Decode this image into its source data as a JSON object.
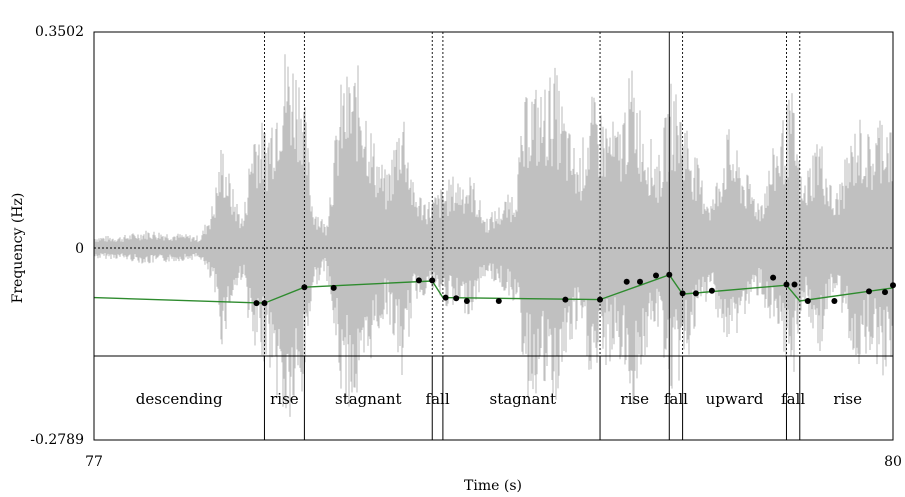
{
  "chart_data": {
    "type": "line",
    "title": "",
    "xlabel": "Time (s)",
    "ylabel": "Frequency (Hz)",
    "x_range": [
      77,
      80
    ],
    "y_top_label": "0.3502",
    "y_bottom_label": "-0.2789",
    "y_mid_label": "0",
    "x_tick_labels": [
      "77",
      "80"
    ],
    "waveform": {
      "color": "#c0c0c0",
      "envelope": [
        {
          "t": 77.0,
          "a": 0.02
        },
        {
          "t": 77.1,
          "a": 0.02
        },
        {
          "t": 77.2,
          "a": 0.03
        },
        {
          "t": 77.3,
          "a": 0.025
        },
        {
          "t": 77.4,
          "a": 0.02
        },
        {
          "t": 77.45,
          "a": 0.08
        },
        {
          "t": 77.48,
          "a": 0.18
        },
        {
          "t": 77.52,
          "a": 0.1
        },
        {
          "t": 77.56,
          "a": 0.05
        },
        {
          "t": 77.6,
          "a": 0.22
        },
        {
          "t": 77.65,
          "a": 0.2
        },
        {
          "t": 77.72,
          "a": 0.34
        },
        {
          "t": 77.78,
          "a": 0.3
        },
        {
          "t": 77.82,
          "a": 0.08
        },
        {
          "t": 77.87,
          "a": 0.04
        },
        {
          "t": 77.93,
          "a": 0.28
        },
        {
          "t": 78.0,
          "a": 0.3
        },
        {
          "t": 78.05,
          "a": 0.18
        },
        {
          "t": 78.1,
          "a": 0.12
        },
        {
          "t": 78.16,
          "a": 0.25
        },
        {
          "t": 78.2,
          "a": 0.1
        },
        {
          "t": 78.26,
          "a": 0.08
        },
        {
          "t": 78.35,
          "a": 0.12
        },
        {
          "t": 78.42,
          "a": 0.12
        },
        {
          "t": 78.47,
          "a": 0.05
        },
        {
          "t": 78.52,
          "a": 0.07
        },
        {
          "t": 78.58,
          "a": 0.1
        },
        {
          "t": 78.63,
          "a": 0.28
        },
        {
          "t": 78.68,
          "a": 0.26
        },
        {
          "t": 78.73,
          "a": 0.3
        },
        {
          "t": 78.78,
          "a": 0.2
        },
        {
          "t": 78.82,
          "a": 0.15
        },
        {
          "t": 78.87,
          "a": 0.25
        },
        {
          "t": 78.92,
          "a": 0.22
        },
        {
          "t": 78.97,
          "a": 0.2
        },
        {
          "t": 79.02,
          "a": 0.3
        },
        {
          "t": 79.07,
          "a": 0.2
        },
        {
          "t": 79.12,
          "a": 0.15
        },
        {
          "t": 79.17,
          "a": 0.28
        },
        {
          "t": 79.22,
          "a": 0.22
        },
        {
          "t": 79.28,
          "a": 0.12
        },
        {
          "t": 79.32,
          "a": 0.08
        },
        {
          "t": 79.38,
          "a": 0.2
        },
        {
          "t": 79.43,
          "a": 0.14
        },
        {
          "t": 79.5,
          "a": 0.08
        },
        {
          "t": 79.56,
          "a": 0.18
        },
        {
          "t": 79.62,
          "a": 0.26
        },
        {
          "t": 79.66,
          "a": 0.1
        },
        {
          "t": 79.72,
          "a": 0.2
        },
        {
          "t": 79.78,
          "a": 0.08
        },
        {
          "t": 79.83,
          "a": 0.16
        },
        {
          "t": 79.87,
          "a": 0.22
        },
        {
          "t": 79.92,
          "a": 0.18
        },
        {
          "t": 79.96,
          "a": 0.24
        },
        {
          "t": 80.0,
          "a": 0.2
        }
      ]
    },
    "boundaries": [
      {
        "t": 77.64,
        "style": "dotted"
      },
      {
        "t": 77.79,
        "style": "dotted"
      },
      {
        "t": 78.27,
        "style": "dotted"
      },
      {
        "t": 78.31,
        "style": "dotted"
      },
      {
        "t": 78.9,
        "style": "dotted"
      },
      {
        "t": 79.16,
        "style": "solid"
      },
      {
        "t": 79.21,
        "style": "dotted"
      },
      {
        "t": 79.6,
        "style": "dotted"
      },
      {
        "t": 79.65,
        "style": "dotted"
      }
    ],
    "segments": [
      {
        "label": "descending",
        "t": 77.32
      },
      {
        "label": "rise",
        "t": 77.715
      },
      {
        "label": "stagnant",
        "t": 78.03
      },
      {
        "label": "fall",
        "t": 78.29
      },
      {
        "label": "stagnant",
        "t": 78.61
      },
      {
        "label": "rise",
        "t": 79.03
      },
      {
        "label": "fall",
        "t": 79.185
      },
      {
        "label": "upward",
        "t": 79.405
      },
      {
        "label": "fall",
        "t": 79.625
      },
      {
        "label": "rise",
        "t": 79.83
      }
    ],
    "pitch_contour": {
      "color": "#2e8b2e",
      "points": [
        {
          "t": 77.0,
          "y": -0.072
        },
        {
          "t": 77.64,
          "y": -0.08
        },
        {
          "t": 77.79,
          "y": -0.057
        },
        {
          "t": 78.27,
          "y": -0.048
        },
        {
          "t": 78.31,
          "y": -0.072
        },
        {
          "t": 78.9,
          "y": -0.075
        },
        {
          "t": 79.16,
          "y": -0.039
        },
        {
          "t": 79.21,
          "y": -0.067
        },
        {
          "t": 79.6,
          "y": -0.054
        },
        {
          "t": 79.65,
          "y": -0.077
        },
        {
          "t": 80.0,
          "y": -0.058
        }
      ]
    },
    "pitch_dots": [
      {
        "t": 77.61,
        "y": -0.08
      },
      {
        "t": 77.64,
        "y": -0.08
      },
      {
        "t": 77.79,
        "y": -0.057
      },
      {
        "t": 77.9,
        "y": -0.058
      },
      {
        "t": 78.22,
        "y": -0.047
      },
      {
        "t": 78.27,
        "y": -0.047
      },
      {
        "t": 78.32,
        "y": -0.072
      },
      {
        "t": 78.36,
        "y": -0.073
      },
      {
        "t": 78.4,
        "y": -0.077
      },
      {
        "t": 78.52,
        "y": -0.077
      },
      {
        "t": 78.77,
        "y": -0.075
      },
      {
        "t": 78.9,
        "y": -0.075
      },
      {
        "t": 79.0,
        "y": -0.049
      },
      {
        "t": 79.05,
        "y": -0.049
      },
      {
        "t": 79.11,
        "y": -0.04
      },
      {
        "t": 79.16,
        "y": -0.039
      },
      {
        "t": 79.21,
        "y": -0.066
      },
      {
        "t": 79.26,
        "y": -0.066
      },
      {
        "t": 79.32,
        "y": -0.062
      },
      {
        "t": 79.55,
        "y": -0.043
      },
      {
        "t": 79.6,
        "y": -0.053
      },
      {
        "t": 79.63,
        "y": -0.053
      },
      {
        "t": 79.68,
        "y": -0.077
      },
      {
        "t": 79.78,
        "y": -0.077
      },
      {
        "t": 79.91,
        "y": -0.063
      },
      {
        "t": 79.97,
        "y": -0.064
      },
      {
        "t": 80.0,
        "y": -0.054
      }
    ]
  }
}
